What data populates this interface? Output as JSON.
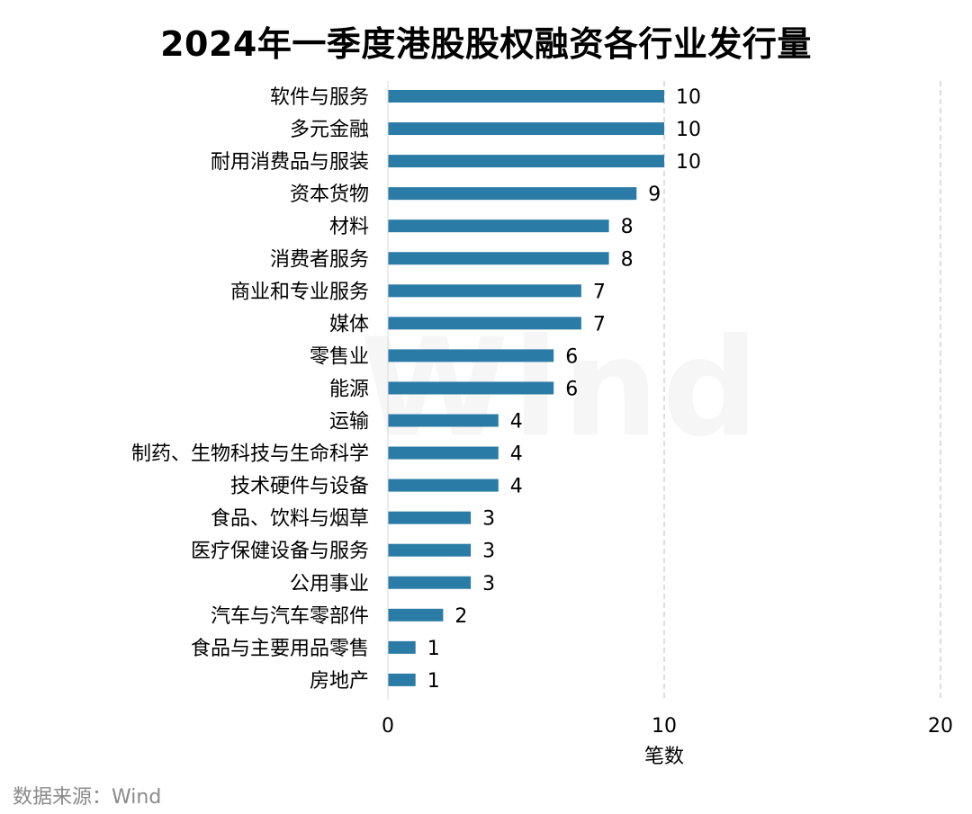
{
  "title": "2024年一季度港股股权融资各行业发行量",
  "source": "数据来源：Wind",
  "watermark": "Wind",
  "colors": {
    "bar": "#2A7BA6",
    "grid": "#c8c8c8",
    "text": "#000000"
  },
  "chart_data": {
    "type": "bar",
    "orientation": "horizontal",
    "title": "2024年一季度港股股权融资各行业发行量",
    "xlabel": "笔数",
    "ylabel": "",
    "xlim": [
      0,
      20
    ],
    "xticks": [
      0,
      10,
      20
    ],
    "grid": "vertical dashed",
    "data_labels": true,
    "categories": [
      "软件与服务",
      "多元金融",
      "耐用消费品与服装",
      "资本货物",
      "材料",
      "消费者服务",
      "商业和专业服务",
      "媒体",
      "零售业",
      "能源",
      "运输",
      "制药、生物科技与生命科学",
      "技术硬件与设备",
      "食品、饮料与烟草",
      "医疗保健设备与服务",
      "公用事业",
      "汽车与汽车零部件",
      "食品与主要用品零售",
      "房地产"
    ],
    "values": [
      10,
      10,
      10,
      9,
      8,
      8,
      7,
      7,
      6,
      6,
      4,
      4,
      4,
      3,
      3,
      3,
      2,
      1,
      1
    ]
  }
}
